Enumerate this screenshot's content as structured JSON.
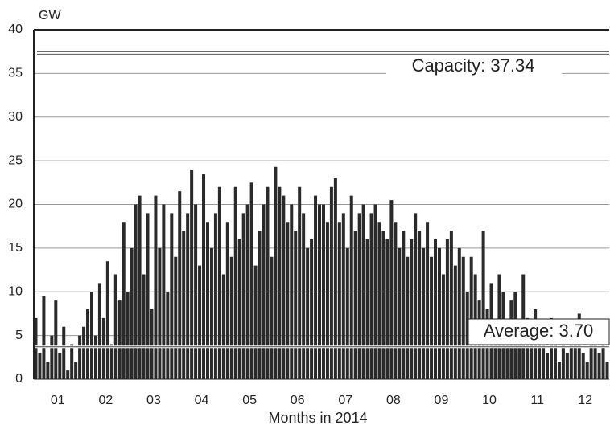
{
  "chart_data": {
    "type": "spikes",
    "y_label": "GW",
    "x_label": "Months in 2014",
    "categories": [
      "01",
      "02",
      "03",
      "04",
      "05",
      "06",
      "07",
      "08",
      "09",
      "10",
      "11",
      "12"
    ],
    "values": [
      [
        7,
        3,
        9.5,
        2,
        5,
        9,
        3,
        6,
        1,
        4,
        2,
        5
      ],
      [
        6,
        8,
        10,
        5,
        11,
        7,
        13.5,
        4,
        12,
        9,
        18,
        10
      ],
      [
        15,
        20,
        21,
        12,
        19,
        8,
        21,
        15,
        20,
        10,
        19,
        14
      ],
      [
        21.5,
        17,
        19,
        24,
        20,
        13,
        23.5,
        18,
        15,
        19,
        22,
        12
      ],
      [
        18,
        14,
        22,
        16,
        19,
        20,
        22.5,
        13,
        17,
        20,
        22,
        14
      ],
      [
        24.3,
        22,
        21,
        18,
        20,
        17,
        22,
        19,
        15,
        16,
        21,
        20
      ],
      [
        20,
        18,
        22,
        23,
        18,
        19,
        15,
        21,
        17,
        19,
        20,
        16
      ],
      [
        19,
        20,
        18,
        17,
        16,
        20.5,
        18,
        15,
        17,
        14,
        16,
        19
      ],
      [
        17,
        15,
        18,
        14,
        16,
        15,
        12,
        16,
        17,
        13,
        15,
        14
      ],
      [
        10,
        14,
        12,
        9,
        17,
        8,
        11,
        6,
        12,
        10,
        5,
        9
      ],
      [
        10,
        6,
        12,
        7,
        5,
        8,
        4,
        6,
        3,
        7,
        5,
        2
      ],
      [
        5,
        3,
        6,
        4,
        7.5,
        3,
        2,
        4,
        5,
        3,
        6,
        2
      ]
    ],
    "color": "#2a2a2a",
    "ylim": [
      0,
      40
    ],
    "yticks": [
      0,
      5,
      10,
      15,
      20,
      25,
      30,
      35,
      40
    ],
    "grid": true,
    "reference_lines": [
      {
        "label": "Capacity: 37.34",
        "value": 37.34
      },
      {
        "label": "Average: 3.70",
        "value": 3.7
      }
    ]
  }
}
